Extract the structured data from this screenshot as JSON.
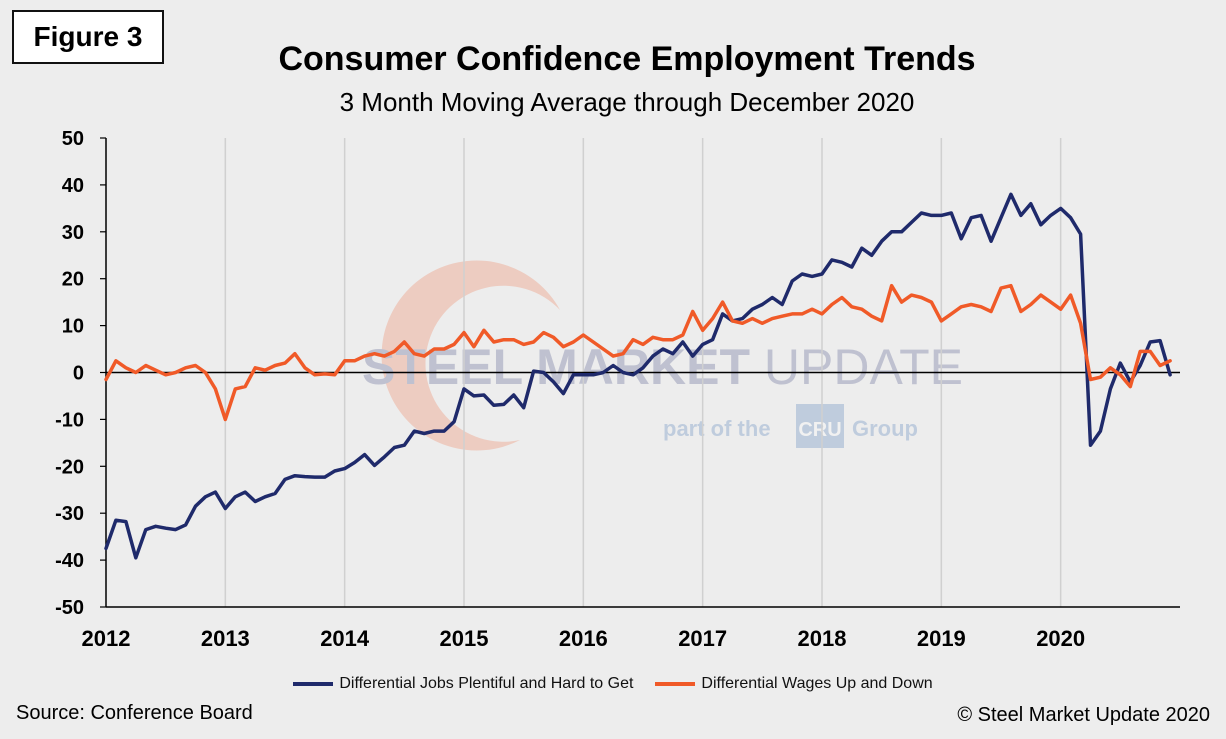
{
  "figure_label": "Figure 3",
  "source": "Source: Conference Board",
  "copyright": "© Steel Market Update 2020",
  "watermark": {
    "brand_bold": "STEEL",
    "brand_mid": " MARKET ",
    "brand_light": "UPDATE",
    "tagline_pre": "part of the",
    "tagline_logo": "CRU",
    "tagline_post": "Group"
  },
  "chart_data": {
    "type": "line",
    "title": "Consumer Confidence Employment Trends",
    "subtitle": "3 Month Moving Average through December 2020",
    "xlabel": "",
    "ylabel": "",
    "xlim": [
      2012,
      2021
    ],
    "ylim": [
      -50,
      50
    ],
    "yticks": [
      50,
      40,
      30,
      20,
      10,
      0,
      -10,
      -20,
      -30,
      -40,
      -50
    ],
    "xticks": [
      "2012",
      "2013",
      "2014",
      "2015",
      "2016",
      "2017",
      "2018",
      "2019",
      "2020"
    ],
    "grid": "vertical",
    "legend_position": "bottom",
    "x_start": 2012.0,
    "x_step": 0.0833333,
    "series": [
      {
        "name": "Differential Jobs Plentiful and Hard to Get",
        "color": "#1f2a6b",
        "values": [
          -37.5,
          -31.5,
          -31.8,
          -39.5,
          -33.5,
          -32.8,
          -33.2,
          -33.5,
          -32.5,
          -28.5,
          -26.5,
          -25.5,
          -29.0,
          -26.5,
          -25.5,
          -27.5,
          -26.5,
          -25.8,
          -22.8,
          -22.0,
          -22.2,
          -22.3,
          -22.3,
          -21.0,
          -20.5,
          -19.2,
          -17.5,
          -19.8,
          -18.0,
          -16.0,
          -15.5,
          -12.5,
          -13.0,
          -12.5,
          -12.5,
          -10.5,
          -3.5,
          -5.0,
          -4.8,
          -7.0,
          -6.8,
          -4.8,
          -7.5,
          0.3,
          0.0,
          -2.0,
          -4.5,
          -0.5,
          -0.5,
          -0.5,
          0.0,
          1.5,
          0.0,
          -0.5,
          1.0,
          3.5,
          5.0,
          4.0,
          6.5,
          3.5,
          6.0,
          7.0,
          12.5,
          11.0,
          11.5,
          13.5,
          14.5,
          16.0,
          14.5,
          19.5,
          21.0,
          20.5,
          21.0,
          24.0,
          23.5,
          22.5,
          26.5,
          25.0,
          28.0,
          30.0,
          30.0,
          32.0,
          34.0,
          33.5,
          33.5,
          34.0,
          28.5,
          33.0,
          33.5,
          28.0,
          33.0,
          38.0,
          33.5,
          36.0,
          31.5,
          33.5,
          35.0,
          33.0,
          29.5,
          -15.5,
          -12.5,
          -3.5,
          2.0,
          -2.0,
          1.5,
          6.5,
          6.8,
          -0.5
        ]
      },
      {
        "name": "Differential Wages Up and Down",
        "color": "#f05a28",
        "values": [
          -1.5,
          2.5,
          1.0,
          0.0,
          1.5,
          0.5,
          -0.5,
          0.0,
          1.0,
          1.5,
          0.0,
          -3.5,
          -10.0,
          -3.5,
          -3.0,
          1.0,
          0.5,
          1.5,
          2.0,
          4.0,
          1.0,
          -0.5,
          -0.3,
          -0.5,
          2.5,
          2.5,
          3.5,
          4.0,
          3.5,
          4.5,
          6.5,
          4.0,
          3.5,
          5.0,
          5.0,
          6.0,
          8.5,
          5.5,
          9.0,
          6.5,
          7.0,
          7.0,
          6.0,
          6.5,
          8.5,
          7.5,
          5.5,
          6.5,
          8.0,
          6.5,
          5.0,
          3.5,
          4.0,
          7.0,
          6.0,
          7.5,
          7.0,
          7.0,
          8.0,
          13.0,
          9.0,
          11.5,
          15.0,
          11.0,
          10.5,
          11.5,
          10.5,
          11.5,
          12.0,
          12.5,
          12.5,
          13.5,
          12.5,
          14.5,
          16.0,
          14.0,
          13.5,
          12.0,
          11.0,
          18.5,
          15.0,
          16.5,
          16.0,
          15.0,
          11.0,
          12.5,
          14.0,
          14.5,
          14.0,
          13.0,
          18.0,
          18.5,
          13.0,
          14.5,
          16.5,
          15.0,
          13.5,
          16.5,
          10.5,
          -1.5,
          -1.0,
          1.0,
          -0.5,
          -3.0,
          4.5,
          4.5,
          1.5,
          2.5
        ]
      }
    ]
  }
}
